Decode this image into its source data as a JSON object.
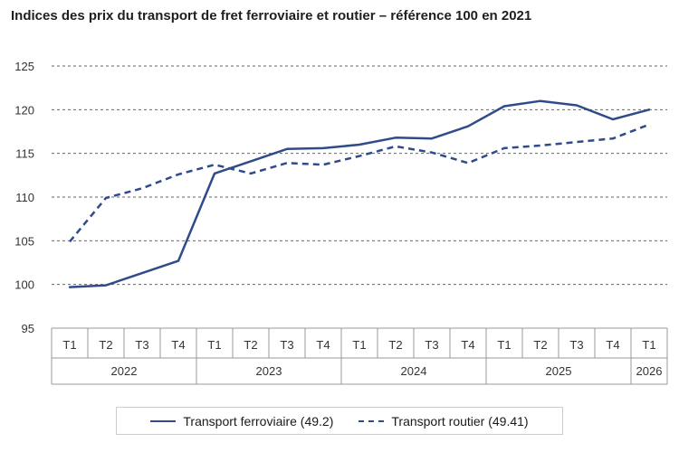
{
  "title": "Indices des prix du transport de fret ferroviaire et routier – référence 100 en 2021",
  "colors": {
    "series": "#2f4b8a",
    "grid": "#666666",
    "axis": "#999999"
  },
  "chart_data": {
    "type": "line",
    "title": "Indices des prix du transport de fret ferroviaire et routier – référence 100 en 2021",
    "xlabel": "",
    "ylabel": "",
    "ylim": [
      95,
      125
    ],
    "yticks": [
      95,
      100,
      105,
      110,
      115,
      120,
      125
    ],
    "grid": "horizontal dashed",
    "legend_position": "bottom",
    "categories": [
      "T1",
      "T2",
      "T3",
      "T4",
      "T1",
      "T2",
      "T3",
      "T4",
      "T1",
      "T2",
      "T3",
      "T4",
      "T1",
      "T2",
      "T3",
      "T4",
      "T1"
    ],
    "years": [
      {
        "label": "2022",
        "span": 4
      },
      {
        "label": "2023",
        "span": 4
      },
      {
        "label": "2024",
        "span": 4
      },
      {
        "label": "2025",
        "span": 4
      },
      {
        "label": "2026",
        "span": 1
      }
    ],
    "series": [
      {
        "name": "Transport ferroviaire (49.2)",
        "style": "solid",
        "values": [
          99.7,
          99.9,
          101.3,
          102.7,
          112.7,
          114.1,
          115.5,
          115.6,
          116.0,
          116.8,
          116.7,
          118.1,
          120.4,
          121.0,
          120.5,
          118.9,
          120.0
        ]
      },
      {
        "name": "Transport routier (49.41)",
        "style": "dashed",
        "values": [
          104.9,
          109.9,
          111.0,
          112.6,
          113.7,
          112.7,
          113.9,
          113.7,
          114.7,
          115.8,
          115.1,
          113.9,
          115.6,
          115.9,
          116.3,
          116.7,
          118.3
        ]
      }
    ]
  }
}
